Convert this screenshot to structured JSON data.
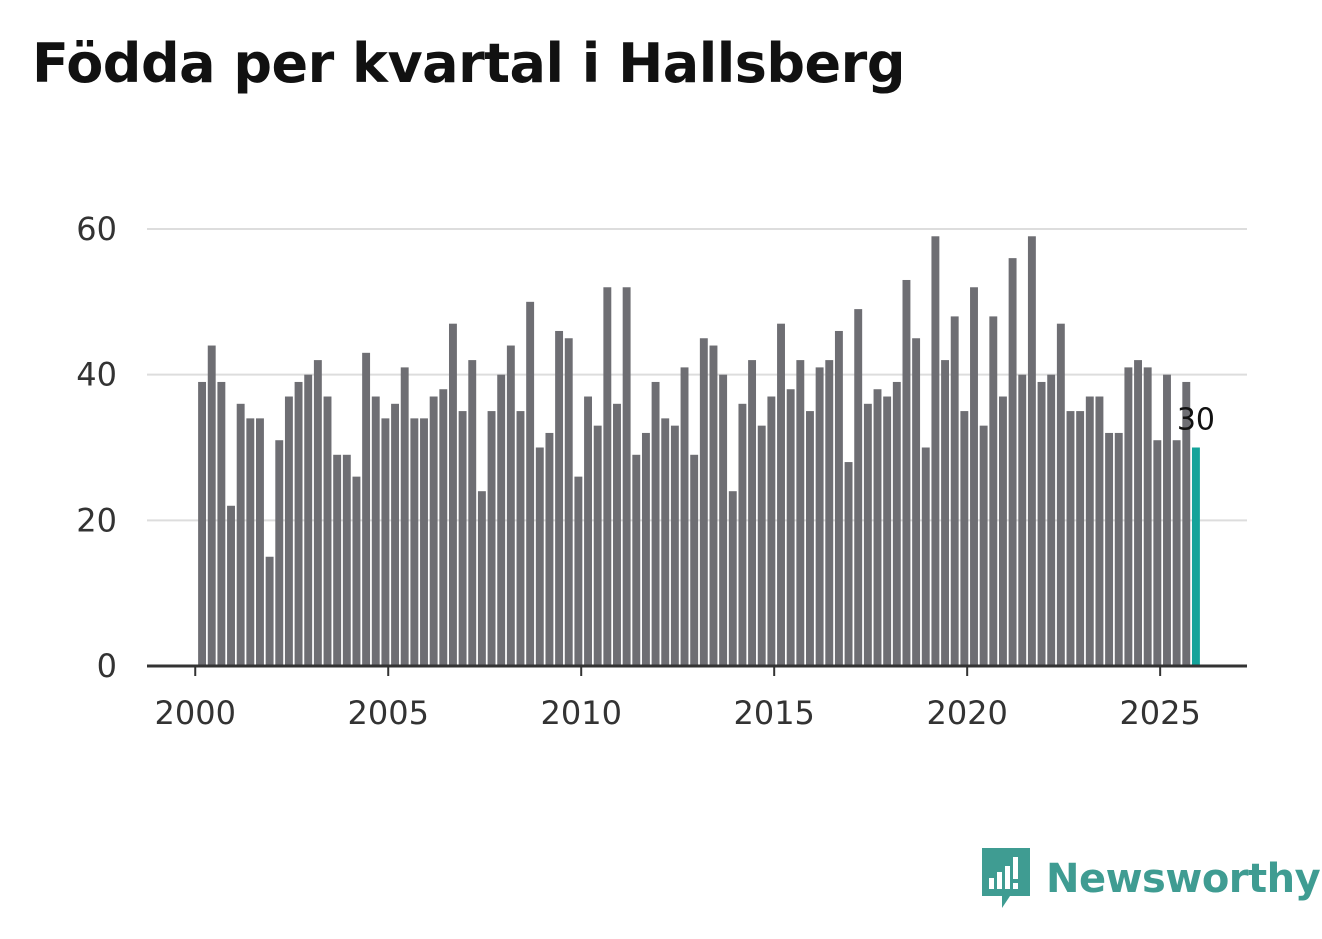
{
  "chart_data": {
    "type": "bar",
    "title": "Födda per kvartal i Hallsberg",
    "xlabel": "",
    "ylabel": "",
    "ylim": [
      0,
      60
    ],
    "yticks": [
      "0",
      "20",
      "40",
      "60"
    ],
    "xticks": [
      "2000",
      "2005",
      "2010",
      "2015",
      "2020",
      "2025"
    ],
    "xrange": [
      1998.75,
      2027.25
    ],
    "grid": true,
    "start_year": 2000,
    "values": [
      39,
      44,
      39,
      22,
      36,
      34,
      34,
      15,
      31,
      37,
      39,
      40,
      42,
      37,
      29,
      29,
      26,
      43,
      37,
      34,
      36,
      41,
      34,
      34,
      37,
      38,
      47,
      35,
      42,
      24,
      35,
      40,
      44,
      35,
      50,
      30,
      32,
      46,
      45,
      26,
      37,
      33,
      52,
      36,
      52,
      29,
      32,
      39,
      34,
      33,
      41,
      29,
      45,
      44,
      40,
      24,
      36,
      42,
      33,
      37,
      47,
      38,
      42,
      35,
      41,
      42,
      46,
      28,
      49,
      36,
      38,
      37,
      39,
      53,
      45,
      30,
      59,
      42,
      48,
      35,
      52,
      33,
      48,
      37,
      56,
      40,
      59,
      39,
      40,
      47,
      35,
      35,
      37,
      37,
      32,
      32,
      41,
      42,
      41,
      31,
      40,
      31,
      39,
      30
    ],
    "last_label": "30",
    "bar_color": "#6e6e73",
    "highlight_color": "#14a39a",
    "grid_color": "#dddddd",
    "axis_color": "#333333"
  },
  "brand": {
    "name": "Newsworthy",
    "color": "#3f9c92"
  }
}
